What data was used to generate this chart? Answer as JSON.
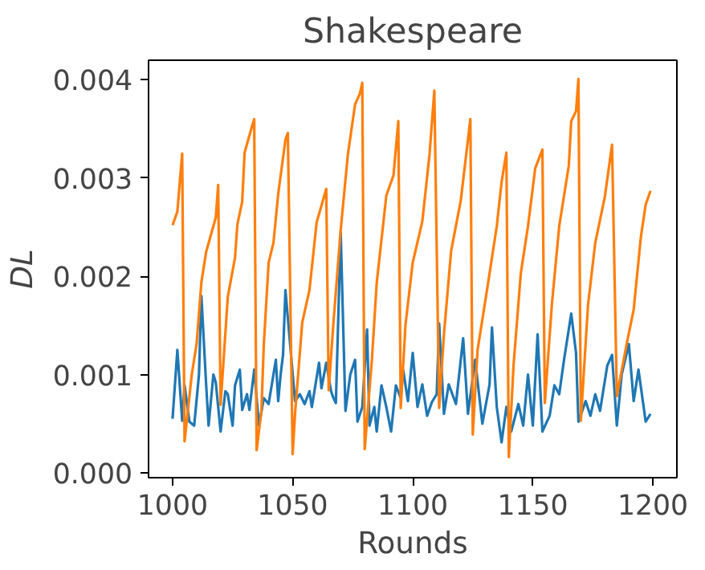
{
  "chart_data": {
    "type": "line",
    "title": "Shakespeare",
    "xlabel": "Rounds",
    "ylabel": "DL",
    "xlim": [
      990,
      1210
    ],
    "ylim": [
      -5e-05,
      0.0042
    ],
    "xticks": [
      1000,
      1050,
      1100,
      1150,
      1200
    ],
    "yticks": [
      {
        "value": 0,
        "label": "0.000"
      },
      {
        "value": 0.001,
        "label": "0.001"
      },
      {
        "value": 0.002,
        "label": "0.002"
      },
      {
        "value": 0.003,
        "label": "0.003"
      },
      {
        "value": 0.004,
        "label": "0.004"
      }
    ],
    "series": [
      {
        "color": "#1f77b4",
        "x": [
          1000,
          1002,
          1004,
          1005,
          1007,
          1009,
          1011,
          1012,
          1014,
          1015,
          1017,
          1018,
          1020,
          1022,
          1023,
          1025,
          1026,
          1028,
          1029,
          1031,
          1032,
          1034,
          1036,
          1038,
          1040,
          1043,
          1044,
          1045,
          1046,
          1047,
          1051,
          1053,
          1055,
          1057,
          1058,
          1061,
          1062,
          1064,
          1066,
          1067,
          1068,
          1070,
          1072,
          1074,
          1076,
          1077,
          1079,
          1081,
          1082,
          1084,
          1085,
          1087,
          1089,
          1091,
          1093,
          1095,
          1096,
          1098,
          1100,
          1102,
          1104,
          1106,
          1108,
          1110,
          1111,
          1113,
          1115,
          1118,
          1121,
          1123,
          1126,
          1129,
          1132,
          1133,
          1135,
          1137,
          1139,
          1141,
          1144,
          1146,
          1148,
          1150,
          1152,
          1154,
          1157,
          1159,
          1161,
          1163,
          1166,
          1168,
          1169,
          1172,
          1174,
          1176,
          1178,
          1181,
          1183,
          1185,
          1187,
          1190,
          1192,
          1194,
          1197,
          1199
        ],
        "values": [
          0.00055,
          0.00125,
          0.00053,
          0.00089,
          0.00052,
          0.00048,
          0.001,
          0.0018,
          0.00089,
          0.00048,
          0.001,
          0.00092,
          0.00042,
          0.00083,
          0.0008,
          0.00048,
          0.00089,
          0.00105,
          0.00064,
          0.0008,
          0.00064,
          0.00105,
          0.00048,
          0.00076,
          0.0007,
          0.00115,
          0.00073,
          0.001,
          0.0012,
          0.00186,
          0.00073,
          0.0008,
          0.0007,
          0.00083,
          0.00067,
          0.00112,
          0.00086,
          0.00112,
          0.00083,
          0.00076,
          0.00071,
          0.00245,
          0.00063,
          0.001,
          0.00115,
          0.00052,
          0.00067,
          0.00146,
          0.00048,
          0.00067,
          0.00042,
          0.00089,
          0.00067,
          0.00042,
          0.00089,
          0.00076,
          0.00105,
          0.00073,
          0.00122,
          0.00067,
          0.0009,
          0.00058,
          0.00072,
          0.0008,
          0.00152,
          0.0006,
          0.0009,
          0.0007,
          0.00137,
          0.0006,
          0.00115,
          0.0005,
          0.0009,
          0.00148,
          0.00067,
          0.00031,
          0.00067,
          0.00042,
          0.0007,
          0.00048,
          0.001,
          0.00048,
          0.00141,
          0.00042,
          0.00058,
          0.00089,
          0.0008,
          0.00115,
          0.00162,
          0.00122,
          0.00052,
          0.00073,
          0.00058,
          0.0008,
          0.00063,
          0.00109,
          0.0012,
          0.00048,
          0.001,
          0.00131,
          0.00073,
          0.00105,
          0.00052,
          0.0006
        ]
      },
      {
        "color": "#ff7f0e",
        "x": [
          1000,
          1002,
          1004,
          1005,
          1008,
          1010,
          1012,
          1014,
          1018,
          1019,
          1020,
          1023,
          1026,
          1027,
          1029,
          1030,
          1033,
          1034,
          1035,
          1037,
          1038,
          1040,
          1042,
          1044,
          1047,
          1048,
          1050,
          1051,
          1054,
          1057,
          1060,
          1064,
          1065,
          1067,
          1070,
          1073,
          1076,
          1078,
          1079,
          1080,
          1083,
          1085,
          1089,
          1092,
          1094,
          1095,
          1097,
          1100,
          1104,
          1107,
          1109,
          1111,
          1113,
          1116,
          1120,
          1124,
          1125,
          1127,
          1131,
          1135,
          1137,
          1139,
          1140,
          1142,
          1145,
          1148,
          1151,
          1154,
          1155,
          1158,
          1161,
          1165,
          1166,
          1168,
          1169,
          1170,
          1173,
          1176,
          1180,
          1183,
          1185,
          1189,
          1192,
          1195,
          1197,
          1199
        ],
        "values": [
          0.00252,
          0.00266,
          0.00325,
          0.00032,
          0.001,
          0.00131,
          0.00194,
          0.00225,
          0.0026,
          0.00293,
          0.00069,
          0.00179,
          0.00219,
          0.00253,
          0.00276,
          0.00326,
          0.00352,
          0.0036,
          0.00023,
          0.00063,
          0.00131,
          0.00214,
          0.00234,
          0.00284,
          0.00339,
          0.00346,
          0.00019,
          0.0006,
          0.00153,
          0.00186,
          0.00255,
          0.00289,
          0.00084,
          0.00153,
          0.00247,
          0.00324,
          0.00375,
          0.00386,
          0.00397,
          0.00024,
          0.00115,
          0.00193,
          0.00282,
          0.00303,
          0.00358,
          0.00066,
          0.00151,
          0.00214,
          0.00256,
          0.00324,
          0.00389,
          0.00066,
          0.00141,
          0.00226,
          0.00277,
          0.0036,
          0.00039,
          0.00125,
          0.00187,
          0.00251,
          0.00296,
          0.00326,
          0.00016,
          0.0011,
          0.00203,
          0.00251,
          0.0031,
          0.00329,
          0.00071,
          0.00173,
          0.00251,
          0.00313,
          0.00358,
          0.00368,
          0.00401,
          0.00053,
          0.00171,
          0.00234,
          0.00281,
          0.00334,
          0.00078,
          0.0013,
          0.00166,
          0.0024,
          0.00273,
          0.00287
        ]
      }
    ]
  }
}
